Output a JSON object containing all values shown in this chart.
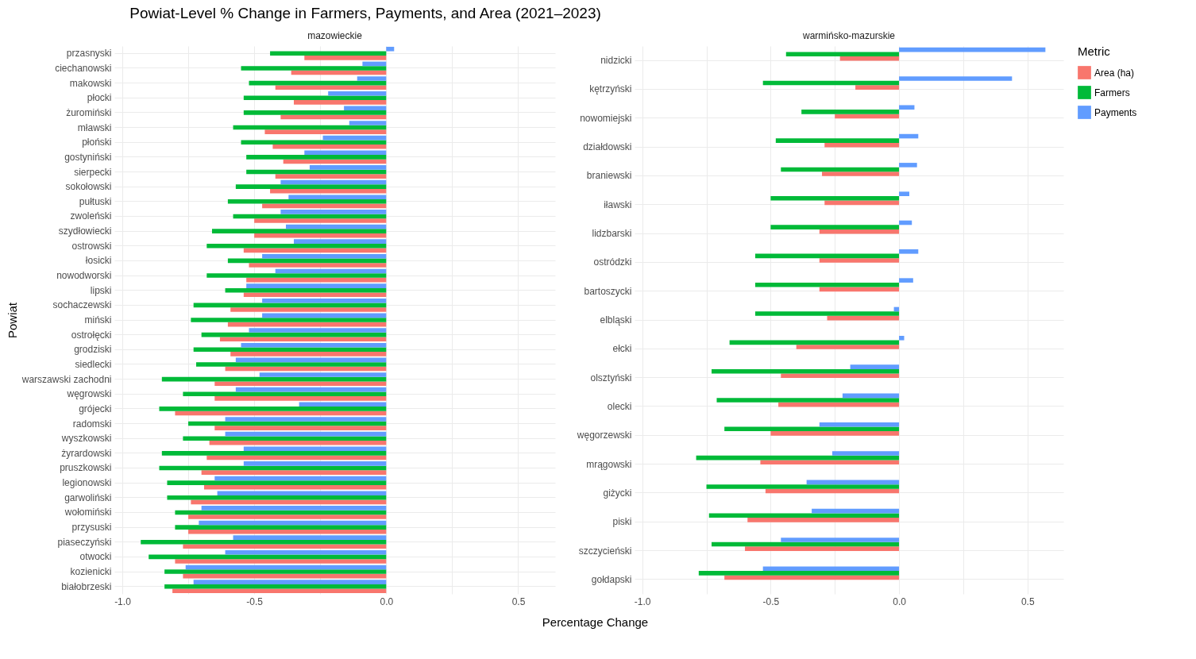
{
  "chart_data": [
    {
      "type": "bar",
      "orientation": "horizontal",
      "title": "Powiat-Level % Change in Farmers, Payments, and Area (2021–2023)",
      "subtitle": "mazowieckie",
      "xlabel": "Percentage Change",
      "ylabel": "Powiat",
      "grid": true,
      "legend": "right",
      "categories": [
        "przasnyski",
        "ciechanowski",
        "makowski",
        "płocki",
        "żuromiński",
        "mławski",
        "płoński",
        "gostyniński",
        "sierpecki",
        "sokołowski",
        "pułtuski",
        "zwoleński",
        "szydłowiecki",
        "ostrowski",
        "łosicki",
        "nowodworski",
        "lipski",
        "sochaczewski",
        "miński",
        "ostrołęcki",
        "grodziski",
        "siedlecki",
        "warszawski zachodni",
        "węgrowski",
        "grójecki",
        "radomski",
        "wyszkowski",
        "żyrardowski",
        "pruszkowski",
        "legionowski",
        "garwoliński",
        "wołomiński",
        "przysuski",
        "piaseczyński",
        "otwocki",
        "kozienicki",
        "białobrzeski"
      ],
      "xlim": [
        -1.03,
        0.64
      ],
      "xticks": [
        {
          "value": -1,
          "label": "-1.0"
        },
        {
          "value": -0.75,
          "label": null
        },
        {
          "value": -0.5,
          "label": "-0.5"
        },
        {
          "value": -0.25,
          "label": null
        },
        {
          "value": 0,
          "label": "0.0"
        },
        {
          "value": 0.25,
          "label": null
        },
        {
          "value": 0.5,
          "label": "0.5"
        }
      ],
      "series": [
        {
          "name": "Area (ha)",
          "color": "#f8766d",
          "values": [
            -0.31,
            -0.36,
            -0.42,
            -0.35,
            -0.4,
            -0.46,
            -0.43,
            -0.39,
            -0.42,
            -0.44,
            -0.47,
            -0.5,
            -0.5,
            -0.54,
            -0.52,
            -0.53,
            -0.54,
            -0.59,
            -0.6,
            -0.63,
            -0.59,
            -0.61,
            -0.65,
            -0.65,
            -0.8,
            -0.65,
            -0.67,
            -0.68,
            -0.7,
            -0.69,
            -0.74,
            -0.75,
            -0.75,
            -0.77,
            -0.8,
            -0.77,
            -0.81
          ]
        },
        {
          "name": "Farmers",
          "color": "#00ba38",
          "values": [
            -0.44,
            -0.55,
            -0.52,
            -0.54,
            -0.54,
            -0.58,
            -0.55,
            -0.53,
            -0.53,
            -0.57,
            -0.6,
            -0.58,
            -0.66,
            -0.68,
            -0.6,
            -0.68,
            -0.61,
            -0.73,
            -0.74,
            -0.7,
            -0.73,
            -0.72,
            -0.85,
            -0.77,
            -0.86,
            -0.75,
            -0.77,
            -0.85,
            -0.86,
            -0.83,
            -0.83,
            -0.8,
            -0.8,
            -0.93,
            -0.9,
            -0.84,
            -0.84
          ]
        },
        {
          "name": "Payments",
          "color": "#619cff",
          "values": [
            0.03,
            -0.09,
            -0.11,
            -0.22,
            -0.16,
            -0.14,
            -0.24,
            -0.31,
            -0.29,
            -0.4,
            -0.37,
            -0.4,
            -0.38,
            -0.35,
            -0.47,
            -0.42,
            -0.53,
            -0.47,
            -0.47,
            -0.52,
            -0.55,
            -0.57,
            -0.48,
            -0.57,
            -0.33,
            -0.61,
            -0.61,
            -0.54,
            -0.54,
            -0.65,
            -0.64,
            -0.7,
            -0.71,
            -0.58,
            -0.61,
            -0.76,
            -0.73
          ]
        }
      ]
    },
    {
      "type": "bar",
      "orientation": "horizontal",
      "subtitle": "warmińsko-mazurskie",
      "grid": true,
      "legend": "right",
      "legend_title": "Metric",
      "categories": [
        "nidzicki",
        "kętrzyński",
        "nowomiejski",
        "działdowski",
        "braniewski",
        "iławski",
        "lidzbarski",
        "ostródzki",
        "bartoszycki",
        "elbląski",
        "ełcki",
        "olsztyński",
        "olecki",
        "węgorzewski",
        "mrągowski",
        "giżycki",
        "piski",
        "szczycieński",
        "gołdapski"
      ],
      "xlim": [
        -1.03,
        0.64
      ],
      "xticks": [
        {
          "value": -1,
          "label": "-1.0"
        },
        {
          "value": -0.75,
          "label": null
        },
        {
          "value": -0.5,
          "label": "-0.5"
        },
        {
          "value": -0.25,
          "label": null
        },
        {
          "value": 0,
          "label": "0.0"
        },
        {
          "value": 0.25,
          "label": null
        },
        {
          "value": 0.5,
          "label": "0.5"
        }
      ],
      "series": [
        {
          "name": "Area (ha)",
          "color": "#f8766d",
          "values": [
            -0.23,
            -0.17,
            -0.25,
            -0.29,
            -0.3,
            -0.29,
            -0.31,
            -0.31,
            -0.31,
            -0.28,
            -0.4,
            -0.46,
            -0.47,
            -0.5,
            -0.54,
            -0.52,
            -0.59,
            -0.6,
            -0.68
          ]
        },
        {
          "name": "Farmers",
          "color": "#00ba38",
          "values": [
            -0.44,
            -0.53,
            -0.38,
            -0.48,
            -0.46,
            -0.5,
            -0.5,
            -0.56,
            -0.56,
            -0.56,
            -0.66,
            -0.73,
            -0.71,
            -0.68,
            -0.79,
            -0.75,
            -0.74,
            -0.73,
            -0.78
          ]
        },
        {
          "name": "Payments",
          "color": "#619cff",
          "values": [
            0.57,
            0.44,
            0.06,
            0.075,
            0.07,
            0.04,
            0.05,
            0.075,
            0.055,
            -0.02,
            0.02,
            -0.19,
            -0.22,
            -0.31,
            -0.26,
            -0.36,
            -0.34,
            -0.46,
            -0.53
          ]
        }
      ]
    }
  ]
}
